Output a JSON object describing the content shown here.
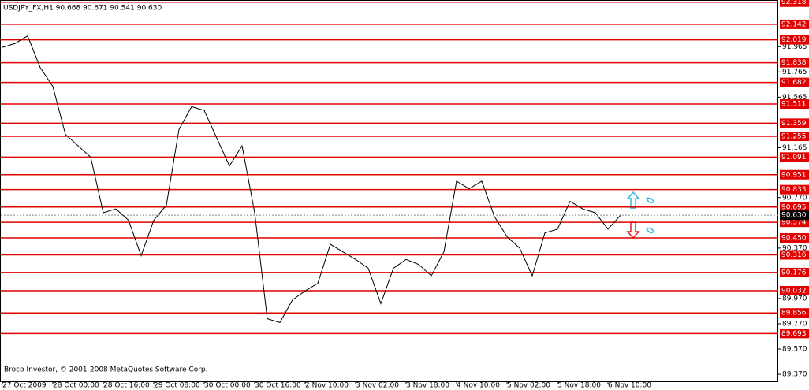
{
  "chart_data": {
    "type": "line",
    "title": "USDJPY_FX,H1  90.668 90.671 90.541 90.630",
    "footer": "Broco Investor, © 2001-2008 MetaQuotes Software Corp.",
    "categories": [
      "27 Oct 2009",
      null,
      null,
      null,
      "28 Oct 00:00",
      null,
      null,
      null,
      "28 Oct 16:00",
      null,
      null,
      null,
      "29 Oct 08:00",
      null,
      null,
      null,
      "30 Oct 00:00",
      null,
      null,
      null,
      "30 Oct 16:00",
      null,
      null,
      null,
      "2 Nov 10:00",
      null,
      null,
      null,
      "3 Nov 02:00",
      null,
      null,
      null,
      "3 Nov 18:00",
      null,
      null,
      null,
      "4 Nov 10:00",
      null,
      null,
      null,
      "5 Nov 02:00",
      null,
      null,
      null,
      "5 Nov 18:00",
      null,
      null,
      null,
      "6 Nov 10:00",
      null
    ],
    "values": [
      91.96,
      91.99,
      92.05,
      91.8,
      91.65,
      91.27,
      91.18,
      91.09,
      90.65,
      90.68,
      90.59,
      90.31,
      90.59,
      90.71,
      91.31,
      91.49,
      91.46,
      91.24,
      91.02,
      91.18,
      90.65,
      89.81,
      89.78,
      89.96,
      90.03,
      90.09,
      90.4,
      90.34,
      90.28,
      90.21,
      89.93,
      90.21,
      90.28,
      90.24,
      90.15,
      90.34,
      90.9,
      90.84,
      90.9,
      90.62,
      90.46,
      90.37,
      90.15,
      90.49,
      90.52,
      90.74,
      90.68,
      90.65,
      90.52,
      90.63
    ],
    "color": "#000000",
    "ylim": [
      89.308,
      92.335
    ],
    "yticks": [
      91.965,
      91.765,
      91.565,
      91.165,
      {
        "value": 90.77,
        "label": "90.770"
      },
      {
        "value": 90.37,
        "label": "90.370"
      },
      {
        "value": 89.97,
        "label": "89.970"
      },
      {
        "value": 89.77,
        "label": "89.770"
      },
      {
        "value": 89.57,
        "label": "89.570"
      },
      {
        "value": 89.37,
        "label": "89.370"
      }
    ],
    "levels": [
      92.318,
      92.142,
      92.019,
      91.838,
      91.682,
      91.511,
      91.359,
      91.255,
      91.091,
      90.951,
      90.833,
      90.695,
      90.574,
      {
        "value": 90.45,
        "label": "90.450"
      },
      90.316,
      90.176,
      90.032,
      89.856,
      89.693
    ],
    "level_color": "#e00000",
    "current_price": {
      "value": 90.63,
      "label": "90.630"
    }
  }
}
